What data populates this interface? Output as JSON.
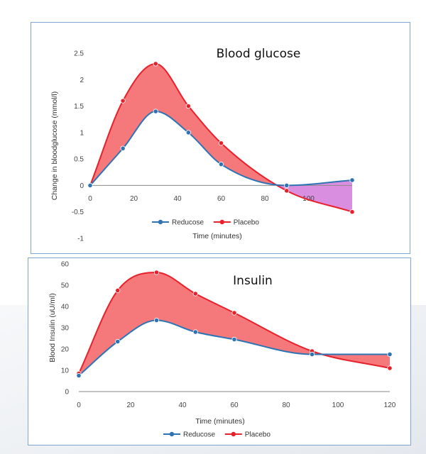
{
  "colors": {
    "reducose": "#2e74b5",
    "placebo": "#e8202a",
    "placebo_fill": "#f4696d",
    "negative_fill": "#d98ee0"
  },
  "chart_data": [
    {
      "type": "line",
      "title": "Blood glucose",
      "xlabel": "Time (minutes)",
      "ylabel": "Change in bloodglucose (mmol/l)",
      "xlim": [
        0,
        120
      ],
      "ylim": [
        -1,
        2.5
      ],
      "x_ticks": [
        0,
        20,
        40,
        60,
        80,
        100
      ],
      "y_ticks": [
        -1,
        -0.5,
        0,
        0.5,
        1,
        1.5,
        2,
        2.5
      ],
      "grid": false,
      "legend_position": "bottom",
      "shaded_area_between_series": true,
      "series": [
        {
          "name": "Reducose",
          "x": [
            0,
            15,
            30,
            45,
            60,
            90,
            120
          ],
          "y": [
            0,
            0.7,
            1.4,
            1.0,
            0.4,
            0.0,
            0.1
          ]
        },
        {
          "name": "Placebo",
          "x": [
            0,
            15,
            30,
            45,
            60,
            90,
            120
          ],
          "y": [
            0,
            1.6,
            2.3,
            1.5,
            0.8,
            -0.1,
            -0.5
          ]
        }
      ]
    },
    {
      "type": "line",
      "title": "Insulin",
      "xlabel": "Time (minutes)",
      "ylabel": "Blood Insulin (uU/ml)",
      "xlim": [
        0,
        120
      ],
      "ylim": [
        0,
        60
      ],
      "x_ticks": [
        0,
        20,
        40,
        60,
        80,
        100,
        120
      ],
      "y_ticks": [
        0,
        10,
        20,
        30,
        40,
        50,
        60
      ],
      "grid": false,
      "legend_position": "bottom",
      "shaded_area_between_series": true,
      "series": [
        {
          "name": "Reducose",
          "x": [
            0,
            15,
            30,
            45,
            60,
            90,
            120
          ],
          "y": [
            7.5,
            23.5,
            33.5,
            28,
            24.5,
            17.5,
            17.5
          ]
        },
        {
          "name": "Placebo",
          "x": [
            0,
            15,
            30,
            45,
            60,
            90,
            120
          ],
          "y": [
            8.5,
            47.5,
            56,
            46,
            37,
            19,
            11
          ]
        }
      ]
    }
  ]
}
